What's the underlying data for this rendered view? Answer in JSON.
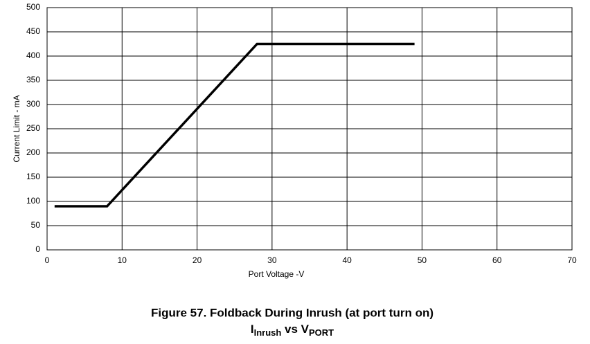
{
  "chart_data": {
    "type": "line",
    "title": "Figure 57.  Foldback During Inrush (at port turn on)",
    "subtitle": [
      {
        "text": "I",
        "sub": "Inrush"
      },
      {
        "text": " vs V",
        "sub": "PORT"
      }
    ],
    "x_label": "Port Voltage -V",
    "y_label": "Current Limit - mA",
    "x": [
      1,
      8,
      28,
      49
    ],
    "series": [
      {
        "color": "#000000",
        "values": [
          90,
          90,
          425,
          425
        ]
      }
    ],
    "xlim": [
      0,
      70
    ],
    "xticks": [
      0,
      10,
      20,
      30,
      40,
      50,
      60,
      70
    ],
    "ylim": [
      0,
      500
    ],
    "yticks": [
      0,
      50,
      100,
      150,
      200,
      250,
      300,
      350,
      400,
      450,
      500
    ],
    "grid": true
  }
}
